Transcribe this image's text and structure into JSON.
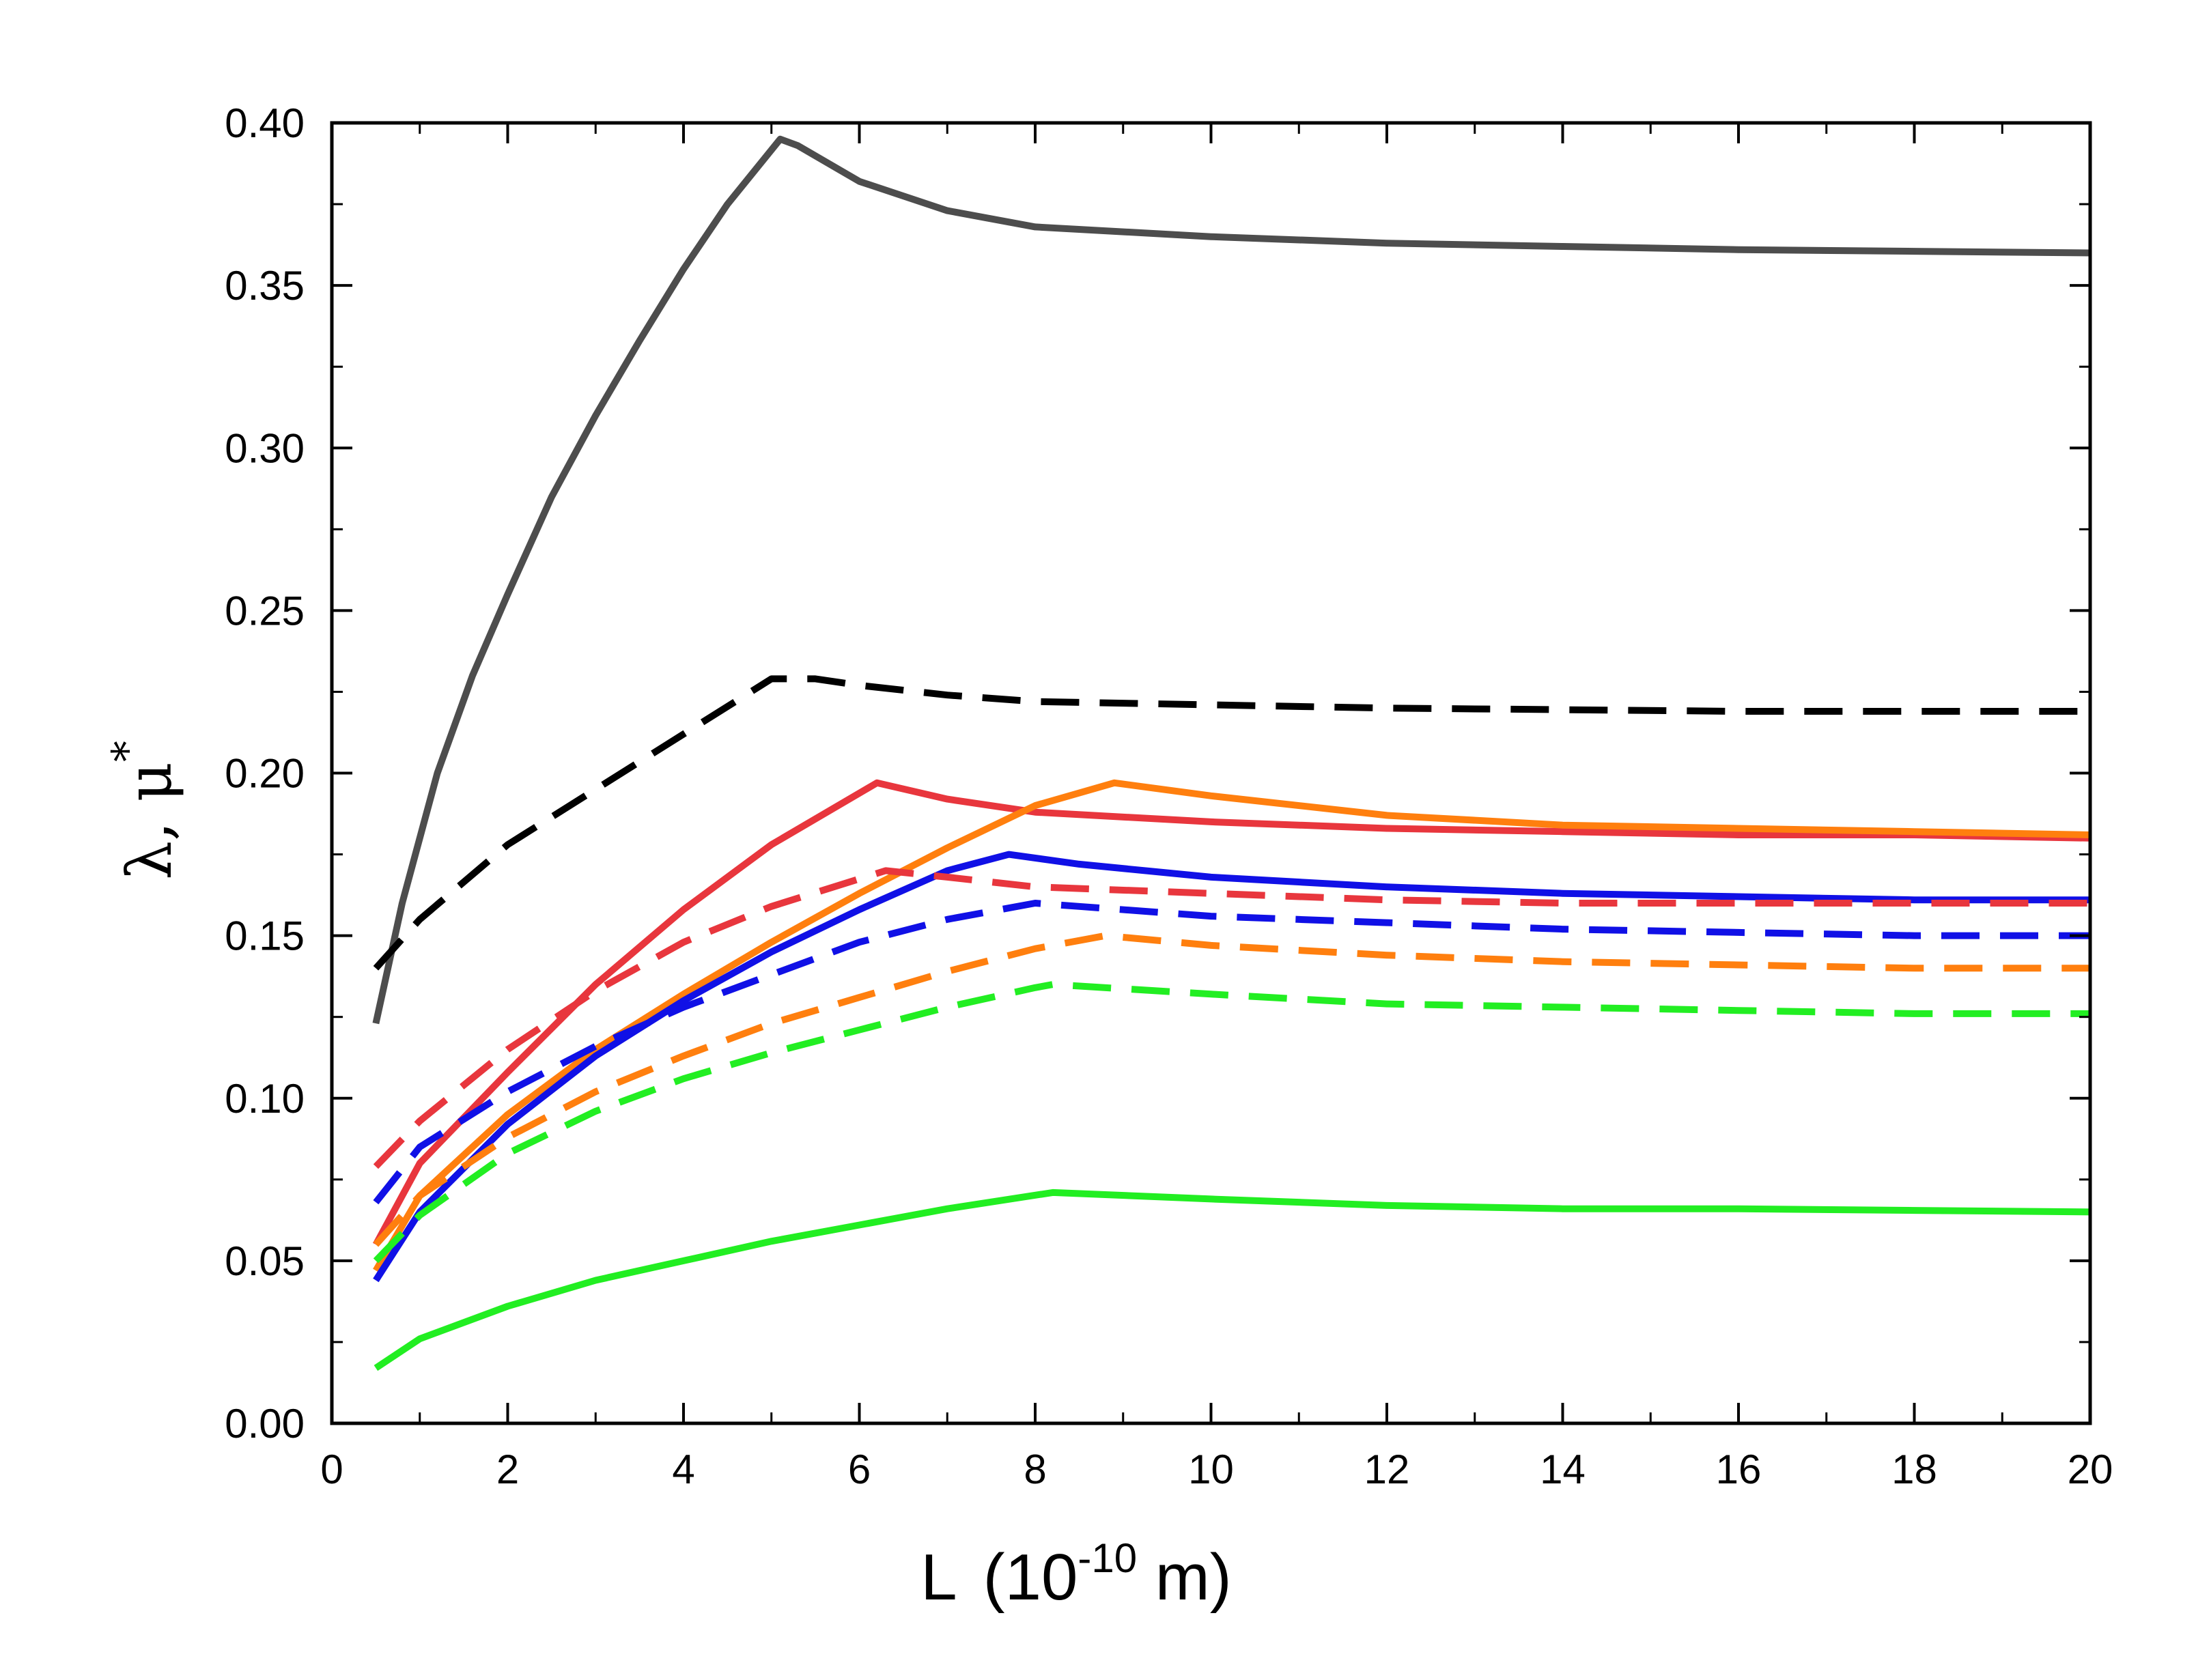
{
  "chart_data": {
    "type": "line",
    "title": "",
    "xlabel": {
      "main": "L",
      "pre_sup": "(10",
      "sup": "-10",
      "post_sup": " m)"
    },
    "ylabel": {
      "main": "λ, μ",
      "sup": "*"
    },
    "xlim": [
      0,
      20
    ],
    "ylim": [
      0,
      0.4
    ],
    "x_ticks": [
      0,
      2,
      4,
      6,
      8,
      10,
      12,
      14,
      16,
      18,
      20
    ],
    "x_tick_labels": [
      "0",
      "2",
      "4",
      "6",
      "8",
      "10",
      "12",
      "14",
      "16",
      "18",
      "20"
    ],
    "y_ticks": [
      0,
      0.05,
      0.1,
      0.15,
      0.2,
      0.25,
      0.3,
      0.35,
      0.4
    ],
    "y_tick_labels": [
      "0.00",
      "0.05",
      "0.10",
      "0.15",
      "0.20",
      "0.25",
      "0.30",
      "0.35",
      "0.40"
    ],
    "grid": false,
    "legend": "none",
    "series": [
      {
        "name": "gray-solid",
        "color": "#4d4d4d",
        "dash": "solid",
        "x": [
          0.5,
          0.8,
          1.2,
          1.6,
          2.0,
          2.5,
          3.0,
          3.5,
          4.0,
          4.5,
          5.1,
          5.3,
          6.0,
          7.0,
          8.0,
          10.0,
          12.0,
          14.0,
          16.0,
          18.0,
          20.0
        ],
        "y": [
          0.123,
          0.16,
          0.2,
          0.23,
          0.255,
          0.285,
          0.31,
          0.333,
          0.355,
          0.375,
          0.395,
          0.393,
          0.382,
          0.373,
          0.368,
          0.365,
          0.363,
          0.362,
          0.361,
          0.3605,
          0.36
        ]
      },
      {
        "name": "black-dashed",
        "color": "#000000",
        "dash": "dashed",
        "x": [
          0.5,
          1.0,
          2.0,
          3.0,
          4.0,
          5.0,
          5.5,
          6.0,
          7.0,
          8.0,
          10.0,
          12.0,
          14.0,
          16.0,
          18.0,
          20.0
        ],
        "y": [
          0.14,
          0.155,
          0.178,
          0.195,
          0.212,
          0.229,
          0.229,
          0.227,
          0.224,
          0.222,
          0.221,
          0.22,
          0.2195,
          0.219,
          0.219,
          0.219
        ]
      },
      {
        "name": "red-solid",
        "color": "#e8363d",
        "dash": "solid",
        "x": [
          0.5,
          1.0,
          2.0,
          3.0,
          4.0,
          5.0,
          6.2,
          7.0,
          8.0,
          10.0,
          12.0,
          14.0,
          16.0,
          18.0,
          20.0
        ],
        "y": [
          0.055,
          0.08,
          0.108,
          0.135,
          0.158,
          0.178,
          0.197,
          0.192,
          0.188,
          0.185,
          0.183,
          0.182,
          0.181,
          0.181,
          0.18
        ]
      },
      {
        "name": "orange-solid",
        "color": "#ff7f0e",
        "dash": "solid",
        "x": [
          0.5,
          1.0,
          2.0,
          3.0,
          4.0,
          5.0,
          6.0,
          7.0,
          8.0,
          8.9,
          10.0,
          12.0,
          14.0,
          16.0,
          18.0,
          20.0
        ],
        "y": [
          0.047,
          0.07,
          0.095,
          0.115,
          0.132,
          0.148,
          0.163,
          0.177,
          0.19,
          0.197,
          0.193,
          0.187,
          0.184,
          0.183,
          0.182,
          0.181
        ]
      },
      {
        "name": "blue-solid",
        "color": "#1010e6",
        "dash": "solid",
        "x": [
          0.5,
          1.0,
          2.0,
          3.0,
          4.0,
          5.0,
          6.0,
          7.0,
          7.7,
          8.5,
          10.0,
          12.0,
          14.0,
          16.0,
          18.0,
          20.0
        ],
        "y": [
          0.044,
          0.065,
          0.092,
          0.113,
          0.13,
          0.145,
          0.158,
          0.17,
          0.175,
          0.172,
          0.168,
          0.165,
          0.163,
          0.162,
          0.161,
          0.161
        ]
      },
      {
        "name": "red-dashed",
        "color": "#e8363d",
        "dash": "dashed",
        "x": [
          0.5,
          1.0,
          2.0,
          3.0,
          4.0,
          5.0,
          6.3,
          7.0,
          8.0,
          10.0,
          12.0,
          14.0,
          16.0,
          18.0,
          20.0
        ],
        "y": [
          0.079,
          0.093,
          0.115,
          0.133,
          0.148,
          0.159,
          0.17,
          0.168,
          0.165,
          0.163,
          0.161,
          0.16,
          0.16,
          0.16,
          0.16
        ]
      },
      {
        "name": "blue-dashed",
        "color": "#1010e6",
        "dash": "dashed",
        "x": [
          0.5,
          1.0,
          2.0,
          3.0,
          4.0,
          5.0,
          6.0,
          7.0,
          8.0,
          8.5,
          10.0,
          12.0,
          14.0,
          16.0,
          18.0,
          20.0
        ],
        "y": [
          0.068,
          0.085,
          0.102,
          0.116,
          0.128,
          0.138,
          0.148,
          0.155,
          0.16,
          0.159,
          0.156,
          0.154,
          0.152,
          0.151,
          0.15,
          0.15
        ]
      },
      {
        "name": "orange-dashed",
        "color": "#ff7f0e",
        "dash": "dashed",
        "x": [
          0.5,
          1.0,
          2.0,
          3.0,
          4.0,
          5.0,
          6.0,
          7.0,
          8.0,
          8.8,
          10.0,
          12.0,
          14.0,
          16.0,
          18.0,
          20.0
        ],
        "y": [
          0.055,
          0.07,
          0.088,
          0.102,
          0.113,
          0.123,
          0.131,
          0.139,
          0.146,
          0.15,
          0.147,
          0.144,
          0.142,
          0.141,
          0.14,
          0.14
        ]
      },
      {
        "name": "green-dashed",
        "color": "#22ee22",
        "dash": "dashed",
        "x": [
          0.5,
          1.0,
          2.0,
          3.0,
          4.0,
          5.0,
          6.0,
          7.0,
          8.0,
          8.2,
          10.0,
          12.0,
          14.0,
          16.0,
          18.0,
          20.0
        ],
        "y": [
          0.05,
          0.064,
          0.083,
          0.096,
          0.106,
          0.114,
          0.121,
          0.128,
          0.134,
          0.135,
          0.132,
          0.129,
          0.128,
          0.127,
          0.126,
          0.126
        ]
      },
      {
        "name": "green-solid",
        "color": "#22ee22",
        "dash": "solid",
        "x": [
          0.5,
          1.0,
          2.0,
          3.0,
          4.0,
          5.0,
          6.0,
          7.0,
          8.2,
          10.0,
          12.0,
          14.0,
          16.0,
          18.0,
          20.0
        ],
        "y": [
          0.017,
          0.026,
          0.036,
          0.044,
          0.05,
          0.056,
          0.061,
          0.066,
          0.071,
          0.069,
          0.067,
          0.066,
          0.066,
          0.0655,
          0.065
        ]
      }
    ]
  }
}
